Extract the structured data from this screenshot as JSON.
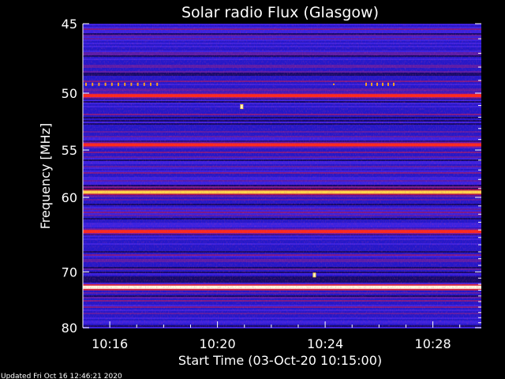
{
  "chart_data": {
    "type": "heatmap",
    "title": "Solar radio Flux (Glasgow)",
    "xlabel": "Start Time (03-Oct-20 10:15:00)",
    "ylabel": "Frequency [MHz]",
    "x_ticks": [
      "10:16",
      "10:20",
      "10:24",
      "10:28"
    ],
    "x_tick_minutes": [
      1,
      5,
      9,
      13
    ],
    "xlim_minutes": [
      0,
      14.8
    ],
    "y_ticks": [
      45,
      50,
      55,
      60,
      70,
      80
    ],
    "ylim": [
      45,
      80
    ],
    "y_scale": "reciprocal",
    "colormap": [
      "#1a0a7a",
      "#2a1cd8",
      "#7a1a9e",
      "#c8102e",
      "#ff2a1a",
      "#ffd84a",
      "#fffbe0"
    ],
    "bands": [
      {
        "freq": 50.2,
        "level": 0.6
      },
      {
        "freq": 54.5,
        "level": 0.62
      },
      {
        "freq": 59.4,
        "level": 0.78
      },
      {
        "freq": 64.2,
        "level": 0.7
      },
      {
        "freq": 72.5,
        "level": 0.97
      }
    ],
    "bursts": [
      {
        "minute": 5.9,
        "freq": 51.1
      },
      {
        "minute": 8.6,
        "freq": 70.5
      }
    ]
  },
  "footer": {
    "updated": "Updated Fri Oct 16 12:46:21 2020"
  }
}
